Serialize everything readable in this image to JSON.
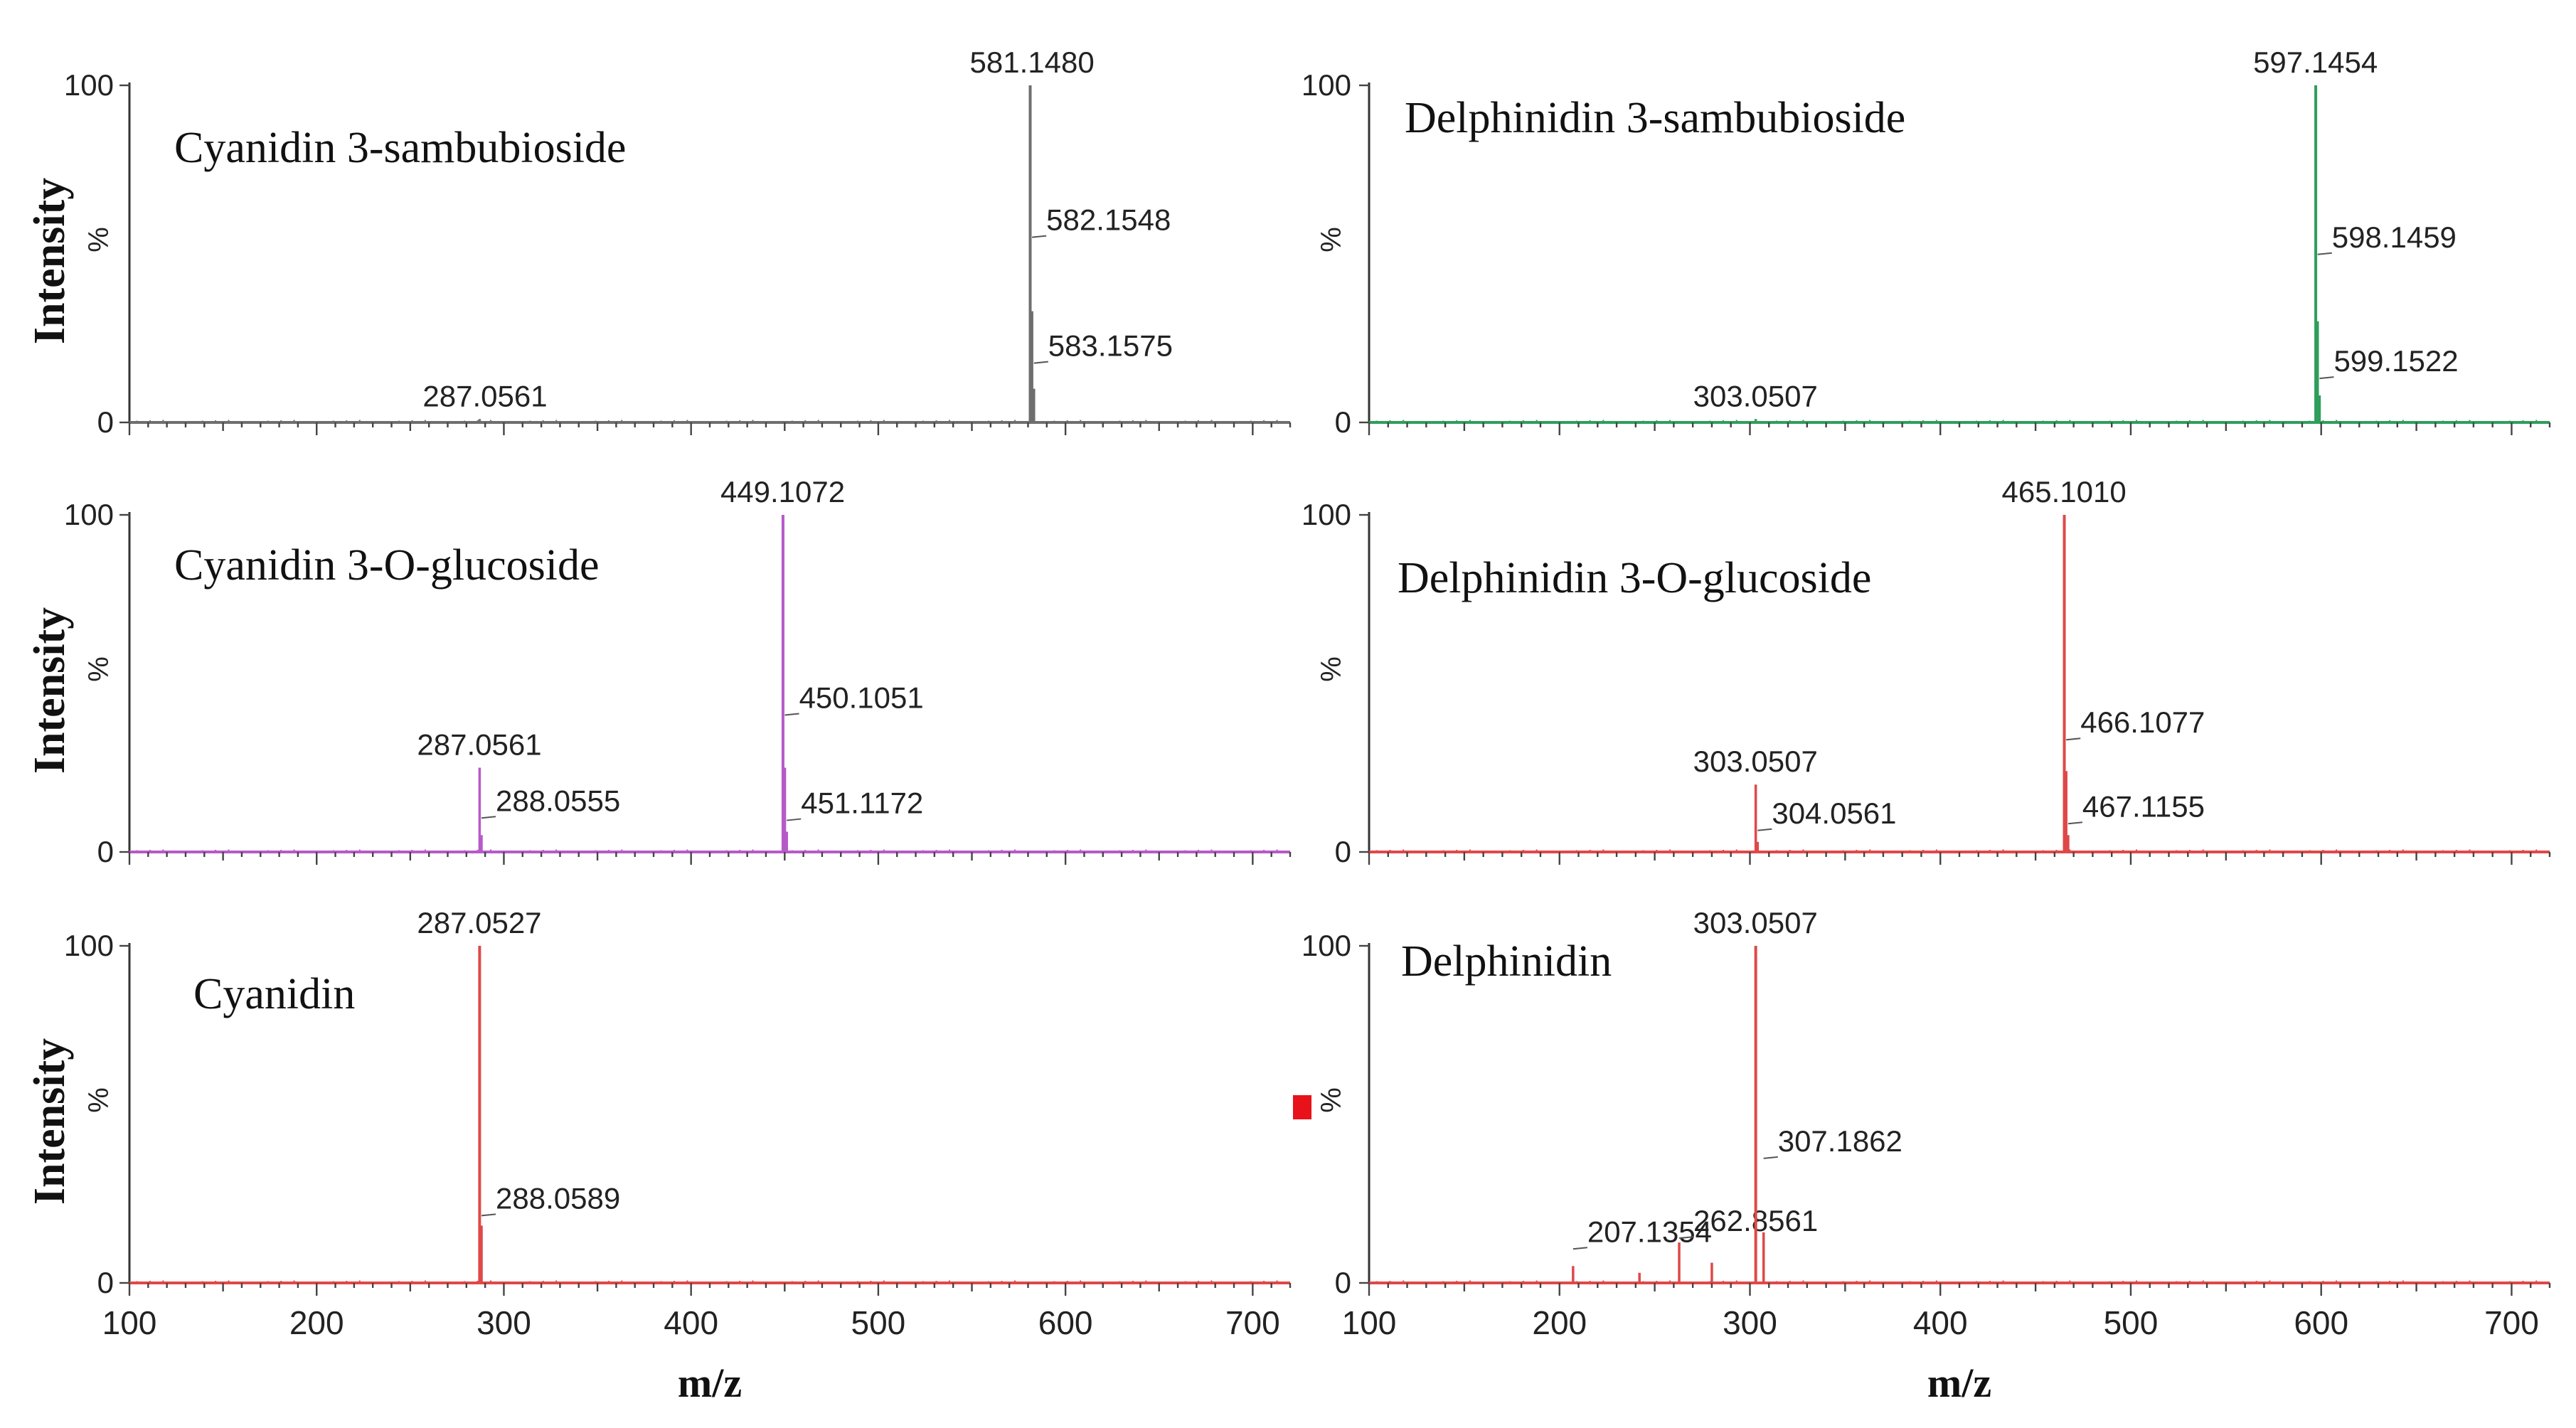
{
  "colors": {
    "gray": "#6e6e6e",
    "green": "#2e9e5a",
    "violet": "#b65ac9",
    "red": "#e04848",
    "marker": "#e8121a"
  },
  "xlabel": "m/z",
  "ylabel": "Intensity",
  "chart_data": [
    {
      "type": "bar",
      "title": "Cyanidin 3-sambubioside",
      "color": "gray",
      "column": 0,
      "row": 0,
      "xlim": [
        100,
        720
      ],
      "ylim": [
        0,
        100
      ],
      "ytick_labels": [
        "100",
        "%",
        "0"
      ],
      "ylabel": "Intensity",
      "peaks": [
        {
          "mz": 287.0561,
          "intensity": 1,
          "label": "287.0561"
        },
        {
          "mz": 581.148,
          "intensity": 100,
          "label": "581.1480"
        },
        {
          "mz": 582.1548,
          "intensity": 33,
          "label": "582.1548"
        },
        {
          "mz": 583.1575,
          "intensity": 10,
          "label": "583.1575"
        }
      ]
    },
    {
      "type": "bar",
      "title": "Delphinidin 3-sambubioside",
      "color": "green",
      "column": 1,
      "row": 0,
      "xlim": [
        100,
        720
      ],
      "ylim": [
        0,
        100
      ],
      "ytick_labels": [
        "100",
        "%",
        "0"
      ],
      "peaks": [
        {
          "mz": 303.0507,
          "intensity": 1,
          "label": "303.0507"
        },
        {
          "mz": 597.1454,
          "intensity": 100,
          "label": "597.1454"
        },
        {
          "mz": 598.1459,
          "intensity": 30,
          "label": "598.1459"
        },
        {
          "mz": 599.1522,
          "intensity": 8,
          "label": "599.1522"
        }
      ]
    },
    {
      "type": "bar",
      "title": "Cyanidin 3-O-glucoside",
      "color": "violet",
      "column": 0,
      "row": 1,
      "xlim": [
        100,
        720
      ],
      "ylim": [
        0,
        100
      ],
      "ytick_labels": [
        "100",
        "%",
        "0"
      ],
      "ylabel": "Intensity",
      "peaks": [
        {
          "mz": 287.0561,
          "intensity": 25,
          "label": "287.0561"
        },
        {
          "mz": 288.0555,
          "intensity": 5,
          "label": "288.0555"
        },
        {
          "mz": 449.1072,
          "intensity": 100,
          "label": "449.1072"
        },
        {
          "mz": 450.1051,
          "intensity": 25,
          "label": "450.1051"
        },
        {
          "mz": 451.1172,
          "intensity": 6,
          "label": "451.1172"
        }
      ]
    },
    {
      "type": "bar",
      "title": "Delphinidin 3-O-glucoside",
      "color": "red",
      "column": 1,
      "row": 1,
      "xlim": [
        100,
        720
      ],
      "ylim": [
        0,
        100
      ],
      "ytick_labels": [
        "100",
        "%",
        "0"
      ],
      "peaks": [
        {
          "mz": 303.0507,
          "intensity": 20,
          "label": "303.0507"
        },
        {
          "mz": 304.0561,
          "intensity": 3,
          "label": "304.0561"
        },
        {
          "mz": 465.101,
          "intensity": 100,
          "label": "465.1010"
        },
        {
          "mz": 466.1077,
          "intensity": 24,
          "label": "466.1077"
        },
        {
          "mz": 467.1155,
          "intensity": 5,
          "label": "467.1155"
        }
      ]
    },
    {
      "type": "bar",
      "title": "Cyanidin",
      "color": "red",
      "column": 0,
      "row": 2,
      "xlim": [
        100,
        720
      ],
      "ylim": [
        0,
        100
      ],
      "ytick_labels": [
        "100",
        "%",
        "0"
      ],
      "ylabel": "Intensity",
      "xticks": [
        100,
        200,
        300,
        400,
        500,
        600,
        700
      ],
      "xlabel": "m/z",
      "peaks": [
        {
          "mz": 287.0527,
          "intensity": 100,
          "label": "287.0527"
        },
        {
          "mz": 288.0589,
          "intensity": 17,
          "label": "288.0589"
        }
      ]
    },
    {
      "type": "bar",
      "title": "Delphinidin",
      "color": "red",
      "column": 1,
      "row": 2,
      "xlim": [
        100,
        720
      ],
      "ylim": [
        0,
        100
      ],
      "ytick_labels": [
        "100",
        "%",
        "0"
      ],
      "xticks": [
        100,
        200,
        300,
        400,
        500,
        600,
        700
      ],
      "xlabel": "m/z",
      "peaks": [
        {
          "mz": 207.1354,
          "intensity": 5,
          "label": "207.1354"
        },
        {
          "mz": 242.0,
          "intensity": 3
        },
        {
          "mz": 262.8561,
          "intensity": 12,
          "label": "262.8561"
        },
        {
          "mz": 280.0,
          "intensity": 6
        },
        {
          "mz": 303.0507,
          "intensity": 100,
          "label": "303.0507"
        },
        {
          "mz": 307.1862,
          "intensity": 15,
          "label": "307.1862"
        }
      ]
    }
  ]
}
